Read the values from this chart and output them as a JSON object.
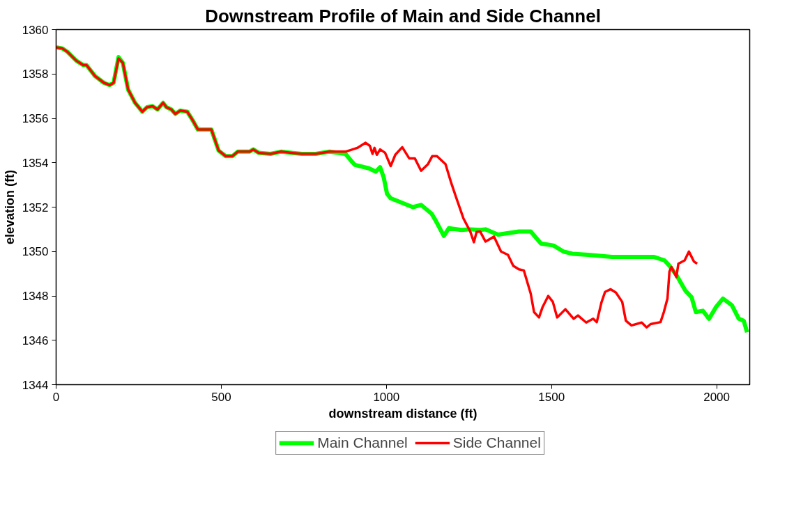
{
  "chart_data": {
    "type": "line",
    "title": "Downstream Profile of Main and Side Channel",
    "xlabel": "downstream distance (ft)",
    "ylabel": "elevation (ft)",
    "xlim": [
      0,
      2100
    ],
    "xticks": [
      0,
      500,
      1000,
      1500,
      2000
    ],
    "ylim": [
      1344,
      1360
    ],
    "yticks": [
      1344,
      1346,
      1348,
      1350,
      1352,
      1354,
      1356,
      1358,
      1360
    ],
    "grid": false,
    "legend": "bottom",
    "marker": "none",
    "line_style": "solid",
    "series": [
      {
        "name": "Main Channel",
        "color": "#00ff00",
        "x": [
          0,
          19,
          34,
          61,
          82,
          92,
          118,
          145,
          162,
          174,
          189,
          202,
          218,
          239,
          261,
          275,
          292,
          307,
          324,
          334,
          349,
          361,
          376,
          397,
          414,
          429,
          450,
          470,
          492,
          513,
          534,
          550,
          586,
          597,
          613,
          649,
          681,
          712,
          744,
          786,
          828,
          876,
          895,
          905,
          947,
          968,
          981,
          992,
          1002,
          1013,
          1038,
          1080,
          1105,
          1137,
          1149,
          1174,
          1189,
          1227,
          1254,
          1284,
          1300,
          1338,
          1401,
          1437,
          1468,
          1506,
          1536,
          1563,
          1611,
          1683,
          1716,
          1809,
          1842,
          1857,
          1878,
          1905,
          1924,
          1937,
          1958,
          1977,
          1998,
          2019,
          2046,
          2067,
          2082,
          2092
        ],
        "values": [
          1359.2,
          1359.15,
          1359.0,
          1358.6,
          1358.4,
          1358.4,
          1357.9,
          1357.6,
          1357.5,
          1357.6,
          1358.76,
          1358.5,
          1357.3,
          1356.7,
          1356.3,
          1356.5,
          1356.55,
          1356.4,
          1356.7,
          1356.5,
          1356.4,
          1356.2,
          1356.35,
          1356.3,
          1355.9,
          1355.5,
          1355.5,
          1355.5,
          1354.55,
          1354.3,
          1354.3,
          1354.5,
          1354.5,
          1354.6,
          1354.45,
          1354.4,
          1354.5,
          1354.45,
          1354.4,
          1354.4,
          1354.5,
          1354.4,
          1354.06,
          1353.9,
          1353.75,
          1353.6,
          1353.8,
          1353.33,
          1352.6,
          1352.4,
          1352.25,
          1352.0,
          1352.1,
          1351.7,
          1351.4,
          1350.7,
          1351.05,
          1350.97,
          1351.0,
          1350.97,
          1351.0,
          1350.76,
          1350.9,
          1350.9,
          1350.36,
          1350.27,
          1350.0,
          1349.9,
          1349.85,
          1349.76,
          1349.76,
          1349.76,
          1349.6,
          1349.36,
          1348.94,
          1348.24,
          1347.94,
          1347.27,
          1347.33,
          1346.97,
          1347.5,
          1347.88,
          1347.58,
          1346.97,
          1346.88,
          1346.36
        ]
      },
      {
        "name": "Side Channel",
        "color": "#ff0000",
        "x": [
          0,
          19,
          34,
          61,
          82,
          92,
          118,
          145,
          162,
          174,
          189,
          202,
          218,
          239,
          261,
          275,
          292,
          307,
          324,
          334,
          349,
          361,
          376,
          397,
          414,
          429,
          450,
          470,
          492,
          513,
          534,
          550,
          586,
          597,
          613,
          649,
          681,
          712,
          744,
          786,
          828,
          876,
          912,
          937,
          950,
          958,
          964,
          971,
          981,
          996,
          1013,
          1027,
          1048,
          1069,
          1086,
          1105,
          1126,
          1139,
          1153,
          1179,
          1195,
          1212,
          1233,
          1254,
          1265,
          1273,
          1284,
          1300,
          1326,
          1347,
          1368,
          1384,
          1401,
          1416,
          1437,
          1447,
          1462,
          1473,
          1490,
          1504,
          1517,
          1542,
          1567,
          1580,
          1605,
          1626,
          1637,
          1651,
          1662,
          1679,
          1695,
          1714,
          1725,
          1742,
          1773,
          1788,
          1800,
          1830,
          1840,
          1851,
          1857,
          1863,
          1878,
          1884,
          1903,
          1916,
          1924,
          1931,
          1941
        ],
        "values": [
          1359.2,
          1359.15,
          1359.0,
          1358.6,
          1358.4,
          1358.4,
          1357.9,
          1357.6,
          1357.5,
          1357.6,
          1358.7,
          1358.5,
          1357.3,
          1356.7,
          1356.3,
          1356.5,
          1356.55,
          1356.4,
          1356.7,
          1356.5,
          1356.4,
          1356.2,
          1356.35,
          1356.3,
          1355.9,
          1355.5,
          1355.5,
          1355.5,
          1354.55,
          1354.3,
          1354.3,
          1354.5,
          1354.5,
          1354.6,
          1354.45,
          1354.4,
          1354.5,
          1354.45,
          1354.4,
          1354.4,
          1354.5,
          1354.5,
          1354.67,
          1354.9,
          1354.76,
          1354.4,
          1354.67,
          1354.36,
          1354.6,
          1354.45,
          1353.85,
          1354.36,
          1354.7,
          1354.2,
          1354.2,
          1353.64,
          1353.94,
          1354.3,
          1354.3,
          1353.94,
          1353.15,
          1352.4,
          1351.5,
          1350.9,
          1350.42,
          1350.88,
          1350.9,
          1350.45,
          1350.67,
          1350.0,
          1349.85,
          1349.36,
          1349.2,
          1349.15,
          1348.1,
          1347.27,
          1347.03,
          1347.5,
          1348.0,
          1347.73,
          1347.03,
          1347.4,
          1346.97,
          1347.12,
          1346.8,
          1346.97,
          1346.82,
          1347.7,
          1348.18,
          1348.3,
          1348.15,
          1347.73,
          1346.88,
          1346.67,
          1346.8,
          1346.58,
          1346.73,
          1346.82,
          1347.27,
          1347.88,
          1349.1,
          1349.3,
          1348.85,
          1349.45,
          1349.6,
          1350.0,
          1349.76,
          1349.55,
          1349.45
        ]
      }
    ]
  }
}
